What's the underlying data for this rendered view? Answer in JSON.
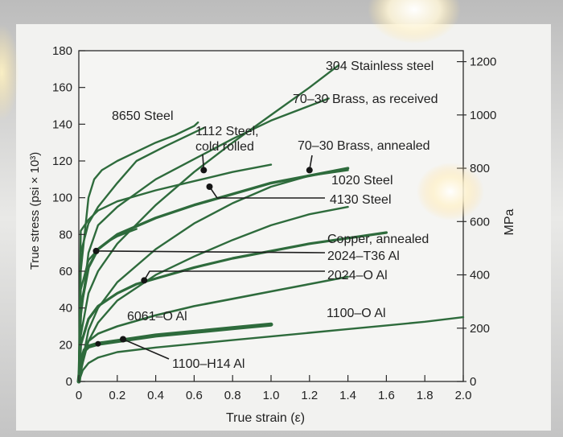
{
  "chart_data": {
    "type": "line",
    "xlabel": "True strain (ε)",
    "ylabel_left": "True stress (psi × 10³)",
    "ylabel_right": "MPa",
    "xlim": [
      0,
      2.0
    ],
    "ylim": [
      0,
      180
    ],
    "x_ticks": [
      "0",
      "0.2",
      "0.4",
      "0.6",
      "0.8",
      "1.0",
      "1.2",
      "1.4",
      "1.6",
      "1.8",
      "2.0"
    ],
    "y_ticks": [
      "0",
      "20",
      "40",
      "60",
      "80",
      "100",
      "120",
      "140",
      "160",
      "180"
    ],
    "y2_ticks": [
      "0",
      "200",
      "400",
      "600",
      "800",
      "1000",
      "1200"
    ],
    "grid": false,
    "series": [
      {
        "name": "304 Stainless steel",
        "x": [
          0,
          0.01,
          0.05,
          0.1,
          0.2,
          0.4,
          0.6,
          0.8,
          1.0,
          1.2,
          1.35
        ],
        "y": [
          0,
          25,
          48,
          60,
          75,
          96,
          114,
          130,
          145,
          160,
          172
        ]
      },
      {
        "name": "70–30 Brass, as received",
        "x": [
          0,
          0.01,
          0.05,
          0.1,
          0.2,
          0.4,
          0.6,
          0.8,
          1.0,
          1.2,
          1.3
        ],
        "y": [
          0,
          35,
          70,
          85,
          95,
          110,
          121,
          132,
          142,
          150,
          154
        ]
      },
      {
        "name": "8650 Steel",
        "x": [
          0,
          0.01,
          0.05,
          0.08,
          0.12,
          0.2,
          0.3,
          0.4,
          0.5,
          0.6,
          0.62
        ],
        "y": [
          0,
          60,
          100,
          110,
          115,
          120,
          125,
          130,
          134,
          139,
          141
        ]
      },
      {
        "name": "1112 Steel, cold rolled",
        "x": [
          0,
          0.01,
          0.05,
          0.1,
          0.2,
          0.3,
          0.45,
          0.65
        ],
        "y": [
          0,
          70,
          86,
          95,
          108,
          120,
          128,
          138
        ]
      },
      {
        "name": "70–30 Brass, annealed",
        "x": [
          0,
          0.02,
          0.05,
          0.1,
          0.2,
          0.4,
          0.6,
          0.8,
          1.0,
          1.2,
          1.4
        ],
        "y": [
          0,
          12,
          28,
          40,
          54,
          72,
          86,
          97,
          106,
          112,
          115
        ]
      },
      {
        "name": "1020 Steel",
        "x": [
          0,
          0.01,
          0.05,
          0.1,
          0.2,
          0.4,
          0.6,
          0.8,
          1.0,
          1.2,
          1.4
        ],
        "y": [
          0,
          40,
          62,
          72,
          80,
          89,
          96,
          102,
          108,
          112,
          116
        ]
      },
      {
        "name": "4130 Steel",
        "x": [
          0,
          0.01,
          0.05,
          0.1,
          0.2,
          0.4,
          0.6,
          0.8,
          1.0
        ],
        "y": [
          0,
          82,
          88,
          93,
          98,
          104,
          109,
          114,
          118
        ]
      },
      {
        "name": "Copper, annealed",
        "x": [
          0,
          0.02,
          0.05,
          0.1,
          0.2,
          0.4,
          0.6,
          0.8,
          1.0,
          1.2,
          1.4
        ],
        "y": [
          0,
          10,
          22,
          32,
          44,
          58,
          68,
          77,
          85,
          91,
          95
        ]
      },
      {
        "name": "2024–T36 Al",
        "x": [
          0,
          0.01,
          0.05,
          0.1,
          0.15,
          0.2,
          0.3
        ],
        "y": [
          0,
          50,
          66,
          72,
          76,
          79,
          83
        ]
      },
      {
        "name": "2024–O Al",
        "x": [
          0,
          0.01,
          0.05,
          0.1,
          0.2,
          0.3,
          0.4,
          0.6,
          0.8,
          1.0,
          1.2,
          1.4,
          1.6
        ],
        "y": [
          0,
          20,
          34,
          41,
          48,
          53,
          56,
          62,
          67,
          71,
          75,
          78,
          81
        ]
      },
      {
        "name": "6061–O Al",
        "x": [
          0,
          0.01,
          0.05,
          0.1,
          0.2,
          0.4,
          0.6,
          0.8,
          1.0,
          1.2,
          1.4
        ],
        "y": [
          0,
          10,
          22,
          26,
          30,
          36,
          41,
          45,
          49,
          53,
          57
        ]
      },
      {
        "name": "1100–H14 Al",
        "x": [
          0,
          0.01,
          0.03,
          0.05,
          0.1,
          0.2,
          0.4,
          0.6,
          0.8,
          1.0
        ],
        "y": [
          0,
          10,
          17,
          19,
          20.5,
          22,
          25,
          27,
          29,
          31
        ]
      },
      {
        "name": "1100–O Al",
        "x": [
          0,
          0.02,
          0.05,
          0.1,
          0.2,
          0.4,
          0.6,
          0.8,
          1.0,
          1.2,
          1.4,
          1.6,
          1.8,
          2.0
        ],
        "y": [
          0,
          6,
          10,
          13,
          16,
          18.5,
          20.5,
          22.5,
          24.5,
          26.5,
          28.5,
          30.5,
          32.5,
          35
        ]
      }
    ],
    "annotations": [
      {
        "label": "304 Stainless steel",
        "series": "304 Stainless steel",
        "x": 1.3,
        "y": 168
      },
      {
        "label": "70–30 Brass, as received",
        "series": "70–30 Brass, as received",
        "x": 1.25,
        "y": 152
      },
      {
        "label": "8650 Steel",
        "series": "8650 Steel",
        "x": 0.45,
        "y": 131
      },
      {
        "label": "1112 Steel,\ncold rolled",
        "series": "1112 Steel, cold rolled",
        "x": 0.65,
        "y": 115,
        "marker": "dot"
      },
      {
        "label": "70–30 Brass, annealed",
        "series": "70–30 Brass, annealed",
        "x": 1.2,
        "y": 115,
        "marker": "dot"
      },
      {
        "label": "1020 Steel",
        "series": "1020 Steel",
        "x": 1.28,
        "y": 113
      },
      {
        "label": "4130 Steel",
        "series": "4130 Steel",
        "x": 0.68,
        "y": 106,
        "marker": "dot"
      },
      {
        "label": "Copper, annealed",
        "series": "Copper, annealed",
        "x": 1.4,
        "y": 95
      },
      {
        "label": "2024–T36 Al",
        "series": "2024–T36 Al",
        "x": 0.09,
        "y": 71,
        "marker": "dot"
      },
      {
        "label": "2024–O Al",
        "series": "2024–O Al",
        "x": 0.34,
        "y": 55,
        "marker": "dot"
      },
      {
        "label": "6061–O Al",
        "series": "6061–O Al",
        "x": 0.7,
        "y": 43
      },
      {
        "label": "1100–H14 Al",
        "series": "1100–H14 Al",
        "x": 0.23,
        "y": 23,
        "marker": "dot"
      },
      {
        "label": "1100–O Al",
        "series": "1100–O Al",
        "x": 1.9,
        "y": 34
      }
    ]
  },
  "colors": {
    "curve": "#2e6b3c",
    "axis": "#2b2b2b",
    "text": "#222222",
    "plot_bg": "#f4f4f2",
    "photo_bg": "#d0d0d0"
  }
}
